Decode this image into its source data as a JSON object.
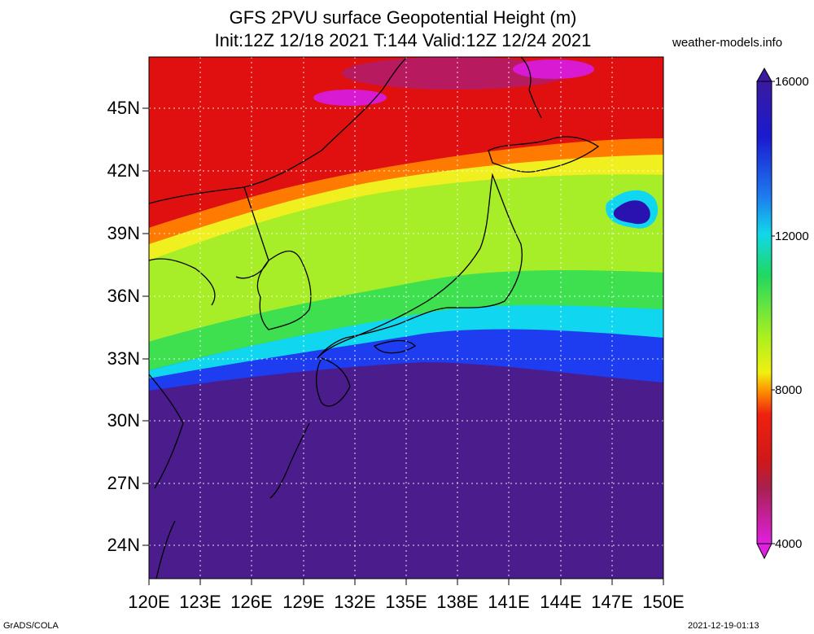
{
  "title_line1": "GFS 2PVU surface Geopotential Height (m)",
  "title_line2": "Init:12Z 12/18 2021 T:144 Valid:12Z 12/24 2021",
  "site": "weather-models.info",
  "credit": "GrADS/COLA",
  "timestamp": "2021-12-19-01:13",
  "lat_labels": [
    "45N",
    "42N",
    "39N",
    "36N",
    "33N",
    "30N",
    "27N",
    "24N"
  ],
  "lon_labels": [
    "120E",
    "123E",
    "126E",
    "129E",
    "132E",
    "135E",
    "138E",
    "141E",
    "144E",
    "147E",
    "150E"
  ],
  "colorbar_labels": [
    "16000",
    "12000",
    "8000",
    "4000"
  ],
  "colors": {
    "purple": "#4b1c8c",
    "navy": "#2a12b0",
    "blue": "#1e3cf0",
    "cyan": "#10d6f0",
    "green": "#3ae048",
    "yellowgreen": "#b6f020",
    "orange": "#ff8a00",
    "red": "#e81010",
    "darkred": "#b81a1a",
    "magenta": "#d81ad2"
  }
}
